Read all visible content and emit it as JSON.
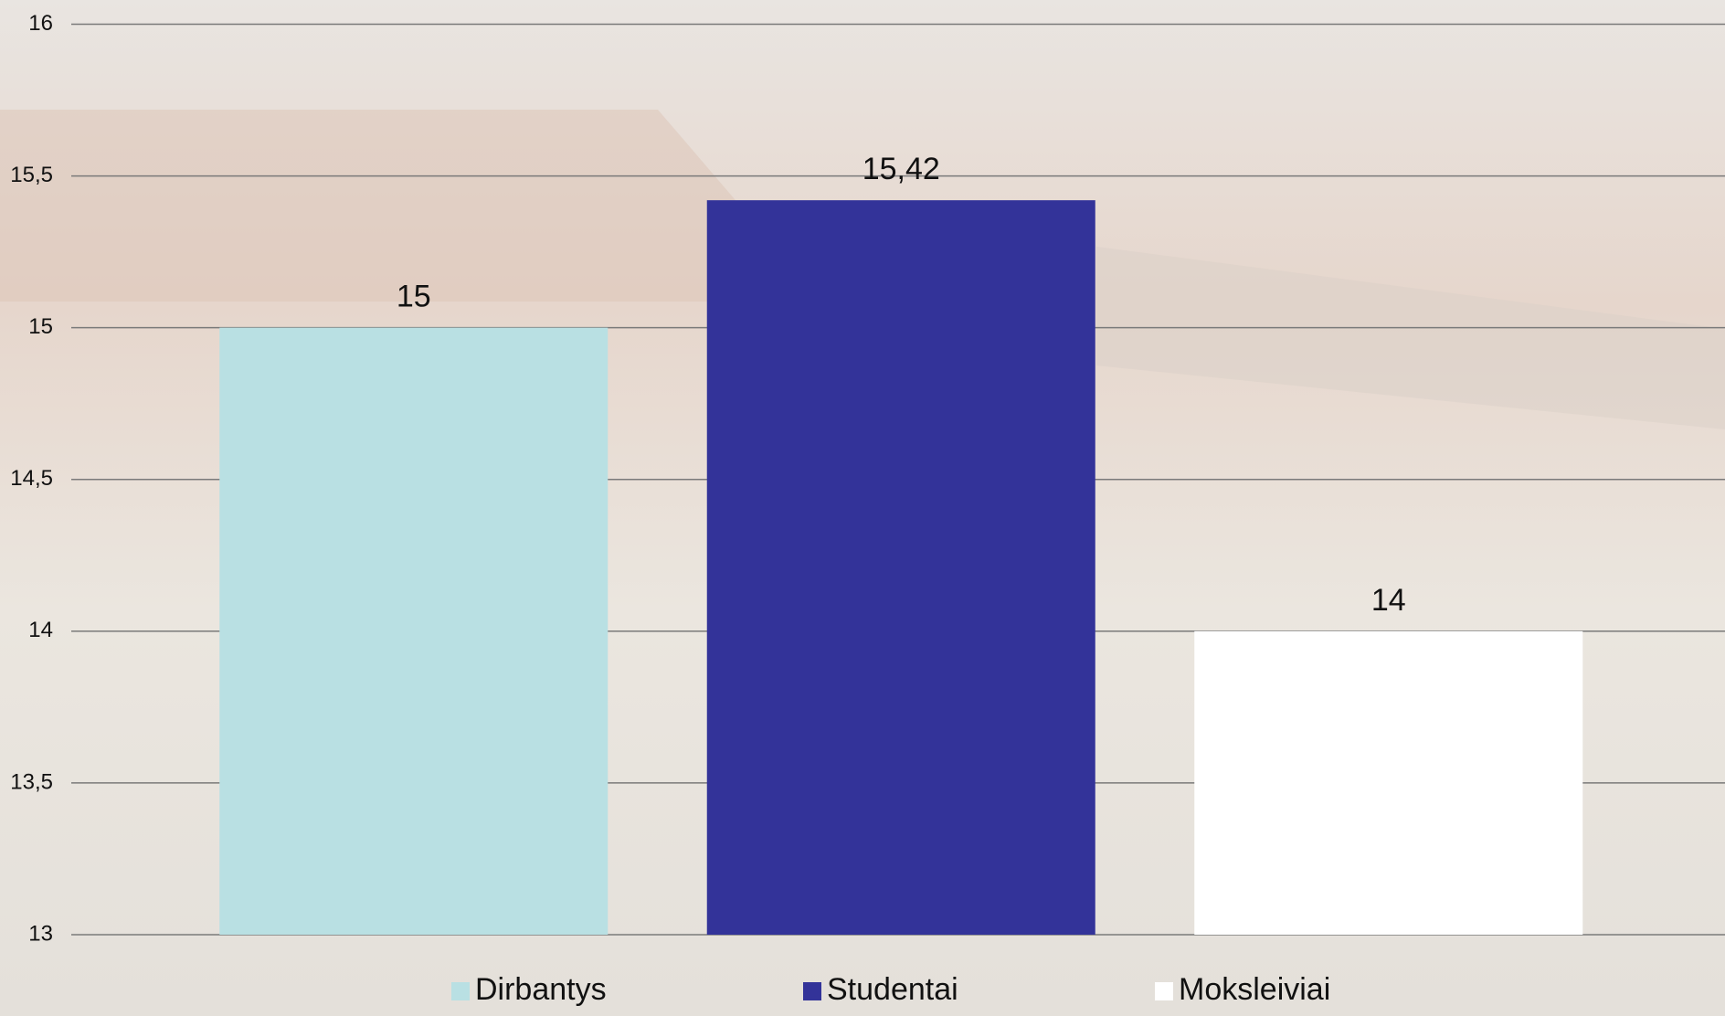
{
  "chart_data": {
    "type": "bar",
    "series": [
      {
        "name": "Dirbantys",
        "color": "#b9e0e3",
        "values": [
          15
        ]
      },
      {
        "name": "Studentai",
        "color": "#333399",
        "values": [
          15.42
        ],
        "value_labels": [
          "15,42"
        ]
      },
      {
        "name": "Moksleiviai",
        "color": "#ffffff",
        "values": [
          14
        ]
      }
    ],
    "ylim": [
      13,
      16
    ],
    "yticks": [
      13,
      {
        "value": 13.5,
        "label": "13,5"
      },
      14,
      {
        "value": 14.5,
        "label": "14,5"
      },
      15,
      {
        "value": 15.5,
        "label": "15,5"
      },
      16
    ],
    "grid": true,
    "legend": "bottom"
  }
}
